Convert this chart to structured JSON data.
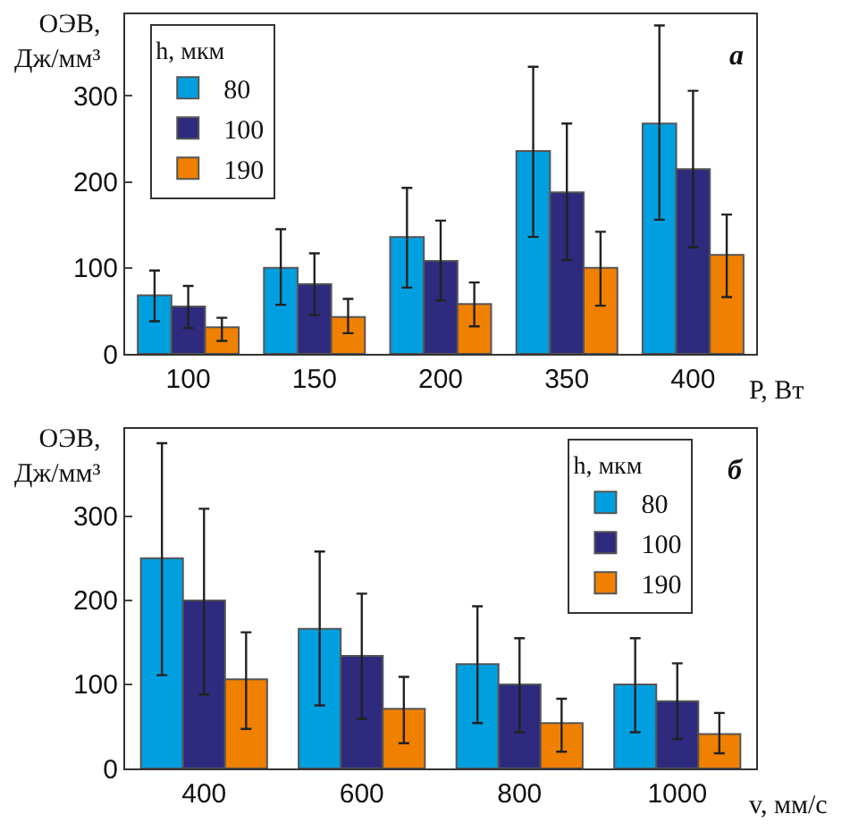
{
  "chart_data": [
    {
      "type": "bar",
      "annotations": [
        "а"
      ],
      "xlabel": "P, Вт",
      "ylabel": "ОЭВ,\nДж/мм³",
      "legend_title": "h, мкм",
      "legend": "top left",
      "grid": false,
      "categories": [
        "100",
        "150",
        "200",
        "350",
        "400"
      ],
      "ylim": [
        0,
        395
      ],
      "yticks": [
        0,
        100,
        200,
        300
      ],
      "series": [
        {
          "name": "80",
          "color": "#00a0e0",
          "values": [
            68,
            100,
            136,
            236,
            268
          ],
          "errors": [
            [
              38,
              97
            ],
            [
              57,
              145
            ],
            [
              77,
              193
            ],
            [
              136,
              334
            ],
            [
              156,
              382
            ]
          ]
        },
        {
          "name": "100",
          "color": "#2e2a7e",
          "values": [
            55,
            81,
            108,
            188,
            215
          ],
          "errors": [
            [
              30,
              79
            ],
            [
              45,
              117
            ],
            [
              62,
              155
            ],
            [
              109,
              268
            ],
            [
              124,
              306
            ]
          ]
        },
        {
          "name": "190",
          "color": "#f08000",
          "values": [
            31,
            43,
            58,
            100,
            115
          ],
          "errors": [
            [
              15,
              42
            ],
            [
              24,
              64
            ],
            [
              32,
              83
            ],
            [
              56,
              142
            ],
            [
              66,
              162
            ]
          ]
        }
      ]
    },
    {
      "type": "bar",
      "annotations": [
        "б"
      ],
      "xlabel": "v, мм/с",
      "ylabel": "ОЭВ,\nДж/мм³",
      "legend_title": "h, мкм",
      "legend": "top right",
      "grid": false,
      "categories": [
        "400",
        "600",
        "800",
        "1000"
      ],
      "ylim": [
        0,
        404
      ],
      "yticks": [
        0,
        100,
        200,
        300
      ],
      "series": [
        {
          "name": "80",
          "color": "#00a0e0",
          "values": [
            250,
            166,
            124,
            100
          ],
          "errors": [
            [
              111,
              387
            ],
            [
              75,
              258
            ],
            [
              54,
              193
            ],
            [
              43,
              155
            ]
          ]
        },
        {
          "name": "100",
          "color": "#2e2a7e",
          "values": [
            200,
            134,
            100,
            80
          ],
          "errors": [
            [
              88,
              309
            ],
            [
              59,
              208
            ],
            [
              43,
              155
            ],
            [
              35,
              125
            ]
          ]
        },
        {
          "name": "190",
          "color": "#f08000",
          "values": [
            106,
            71,
            54,
            41
          ],
          "errors": [
            [
              47,
              162
            ],
            [
              30,
              109
            ],
            [
              20,
              83
            ],
            [
              18,
              66
            ]
          ]
        }
      ]
    }
  ]
}
